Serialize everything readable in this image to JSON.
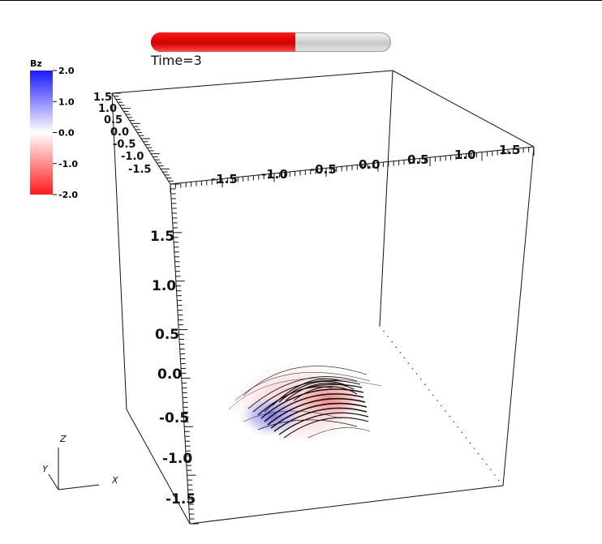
{
  "animation": {
    "progress_fraction": 0.6,
    "time_label": "Time=3"
  },
  "colorbar": {
    "title": "Bz",
    "labels": [
      "2.0",
      "1.0",
      "0.0",
      "-1.0",
      "-2.0"
    ],
    "colors": {
      "max": "#1a1aff",
      "mid": "#ffffff",
      "min": "#ff1a1a"
    }
  },
  "axes": {
    "x_ticks": [
      "-1.5",
      "-1.0",
      "-0.5",
      "0.0",
      "0.5",
      "1.0",
      "1.5"
    ],
    "y_ticks": [
      "1.5",
      "1.0",
      "0.5",
      "0.0",
      "-0.5",
      "-1.0",
      "-1.5"
    ],
    "z_ticks": [
      "1.5",
      "1.0",
      "0.5",
      "0.0",
      "-0.5",
      "-1.0",
      "-1.5"
    ]
  },
  "triad": {
    "z": "Z",
    "y": "Y",
    "x": "X"
  }
}
